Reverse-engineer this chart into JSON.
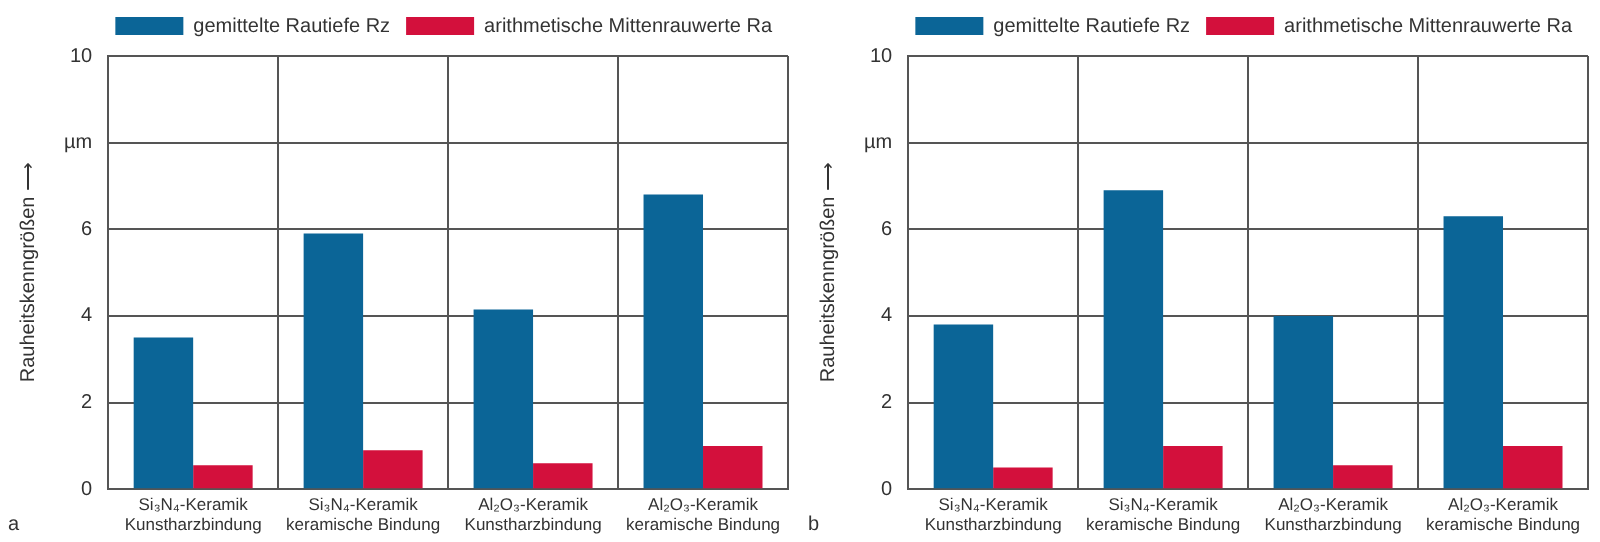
{
  "chart_data": [
    {
      "type": "bar",
      "ylabel": "Rauheitskenngrößen ⟶",
      "categories": [
        "Si₃N₄-Keramik\nKunstharzbindung",
        "Si₃N₄-Keramik\nkeramische Bindung",
        "Al₂O₃-Keramik\nKunstharzbindung",
        "Al₂O₃-Keramik\nkeramische Bindung"
      ],
      "series": [
        {
          "name": "gemittelte Rautiefe Rz",
          "color": "#0b6597",
          "values": [
            3.5,
            5.9,
            4.15,
            6.8
          ]
        },
        {
          "name": "arithmetische Mittenrauwerte Ra",
          "color": "#d3103c",
          "values": [
            0.55,
            0.9,
            0.6,
            1.0
          ]
        }
      ],
      "ylim": [
        0,
        10
      ],
      "yticks": [
        0,
        2,
        4,
        6,
        {
          "value": 8,
          "label": "µm"
        },
        10
      ],
      "grid": true,
      "legend": "top right",
      "annotations": [
        "a"
      ]
    },
    {
      "type": "bar",
      "ylabel": "Rauheitskenngrößen ⟶",
      "categories": [
        "Si₃N₄-Keramik\nKunstharzbindung",
        "Si₃N₄-Keramik\nkeramische Bindung",
        "Al₂O₃-Keramik\nKunstharzbindung",
        "Al₂O₃-Keramik\nkeramische Bindung"
      ],
      "series": [
        {
          "name": "gemittelte Rautiefe Rz",
          "color": "#0b6597",
          "values": [
            3.8,
            6.9,
            4.0,
            6.3
          ]
        },
        {
          "name": "arithmetische Mittenrauwerte Ra",
          "color": "#d3103c",
          "values": [
            0.5,
            1.0,
            0.55,
            1.0
          ]
        }
      ],
      "ylim": [
        0,
        10
      ],
      "yticks": [
        0,
        2,
        4,
        6,
        {
          "value": 8,
          "label": "µm"
        },
        10
      ],
      "grid": true,
      "legend": "top right",
      "annotations": [
        "b"
      ]
    }
  ]
}
